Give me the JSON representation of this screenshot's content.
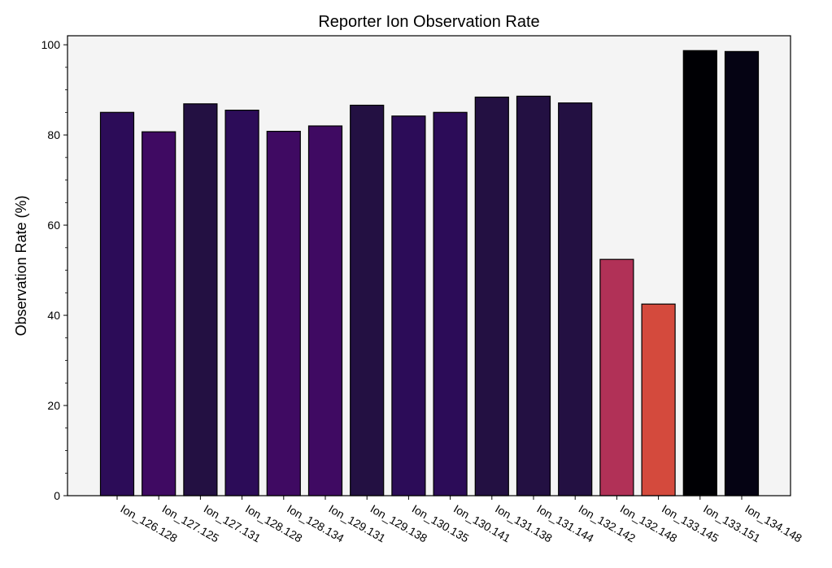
{
  "chart_data": {
    "type": "bar",
    "title": "Reporter Ion Observation Rate",
    "xlabel": "",
    "ylabel": "Observation Rate (%)",
    "ylim": [
      0,
      102
    ],
    "yticks": [
      0,
      20,
      40,
      60,
      80,
      100
    ],
    "grid": false,
    "legend": "none",
    "plot_background": "#f4f4f4",
    "bar_edge_color": "#000000",
    "categories": [
      "Ion_126.128",
      "Ion_127.125",
      "Ion_127.131",
      "Ion_128.128",
      "Ion_128.134",
      "Ion_129.131",
      "Ion_129.138",
      "Ion_130.135",
      "Ion_130.141",
      "Ion_131.138",
      "Ion_131.144",
      "Ion_132.142",
      "Ion_132.148",
      "Ion_133.145",
      "Ion_133.151",
      "Ion_134.148"
    ],
    "values": [
      85.0,
      80.7,
      86.9,
      85.5,
      80.8,
      82.0,
      86.6,
      84.2,
      85.0,
      88.4,
      88.6,
      87.1,
      52.4,
      42.5,
      98.7,
      98.5
    ],
    "colors": [
      "#2c0c58",
      "#3f0a62",
      "#231042",
      "#2c0c58",
      "#3f0a62",
      "#3f0a62",
      "#231042",
      "#2c0c58",
      "#2c0c58",
      "#231042",
      "#231042",
      "#231042",
      "#b13157",
      "#d44a3d",
      "#000004",
      "#050313"
    ]
  }
}
